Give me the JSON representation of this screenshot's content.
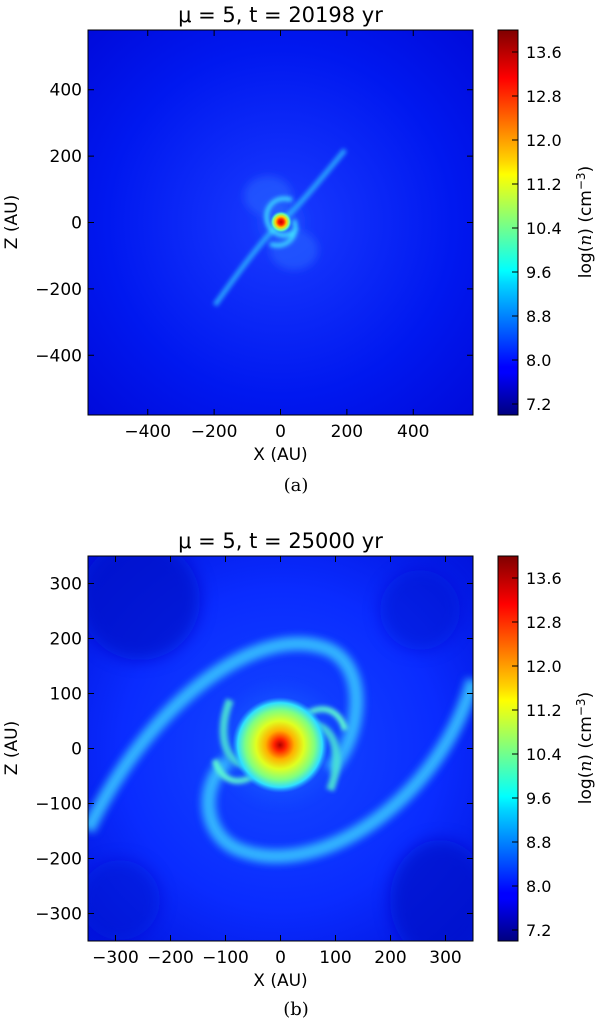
{
  "chart_data": [
    {
      "type": "heatmap",
      "panel_label": "(a)",
      "title": "μ = 5, t = 20198 yr",
      "xlabel": "X (AU)",
      "ylabel": "Z (AU)",
      "xlim": [
        -580,
        580
      ],
      "ylim": [
        -580,
        580
      ],
      "xticks": [
        -400,
        -200,
        0,
        200,
        400
      ],
      "xtick_labels": [
        "−400",
        "−200",
        "0",
        "200",
        "400"
      ],
      "yticks": [
        400,
        200,
        0,
        -200,
        -400
      ],
      "ytick_labels": [
        "400",
        "200",
        "0",
        "−200",
        "−400"
      ],
      "colorbar": {
        "label": "log(n) (cm−3)",
        "colormap": "jet",
        "range": [
          7.0,
          14.0
        ],
        "ticks": [
          13.6,
          12.8,
          12.0,
          11.2,
          10.4,
          9.6,
          8.8,
          8.0,
          7.2
        ],
        "tick_labels": [
          "13.6",
          "12.8",
          "12.0",
          "11.2",
          "10.4",
          "9.6",
          "8.8",
          "8.0",
          "7.2"
        ]
      },
      "features": {
        "background_log_n": 7.6,
        "core": {
          "x": 0,
          "z": 0,
          "peak_log_n": 14.0
        },
        "spiral_arms": "two spiral arms along the SW–NE diagonal, extending to about ±230 AU",
        "lobes": "faint lobes around the centre within about 100 AU"
      }
    },
    {
      "type": "heatmap",
      "panel_label": "(b)",
      "title": "μ = 5, t = 25000 yr",
      "xlabel": "X (AU)",
      "ylabel": "Z (AU)",
      "xlim": [
        -350,
        350
      ],
      "ylim": [
        -350,
        350
      ],
      "xticks": [
        -300,
        -200,
        -100,
        0,
        100,
        200,
        300
      ],
      "xtick_labels": [
        "−300",
        "−200",
        "−100",
        "0",
        "100",
        "200",
        "300"
      ],
      "yticks": [
        300,
        200,
        100,
        0,
        -100,
        -200,
        -300
      ],
      "ytick_labels": [
        "300",
        "200",
        "100",
        "0",
        "−100",
        "−200",
        "−300"
      ],
      "colorbar": {
        "label": "log(n) (cm−3)",
        "colormap": "jet",
        "range": [
          7.0,
          14.0
        ],
        "ticks": [
          13.6,
          12.8,
          12.0,
          11.2,
          10.4,
          9.6,
          8.8,
          8.0,
          7.2
        ],
        "tick_labels": [
          "13.6",
          "12.8",
          "12.0",
          "11.2",
          "10.4",
          "9.6",
          "8.8",
          "8.0",
          "7.2"
        ]
      },
      "features": {
        "background_log_n": 7.8,
        "core": {
          "x": 0,
          "z": 0,
          "peak_log_n": 14.0
        },
        "disk_radius_au": 70,
        "spiral_arms": "two long spiral arms wrapping the core, reaching the plot edges near (-350,-150) and (350,150)"
      }
    }
  ]
}
